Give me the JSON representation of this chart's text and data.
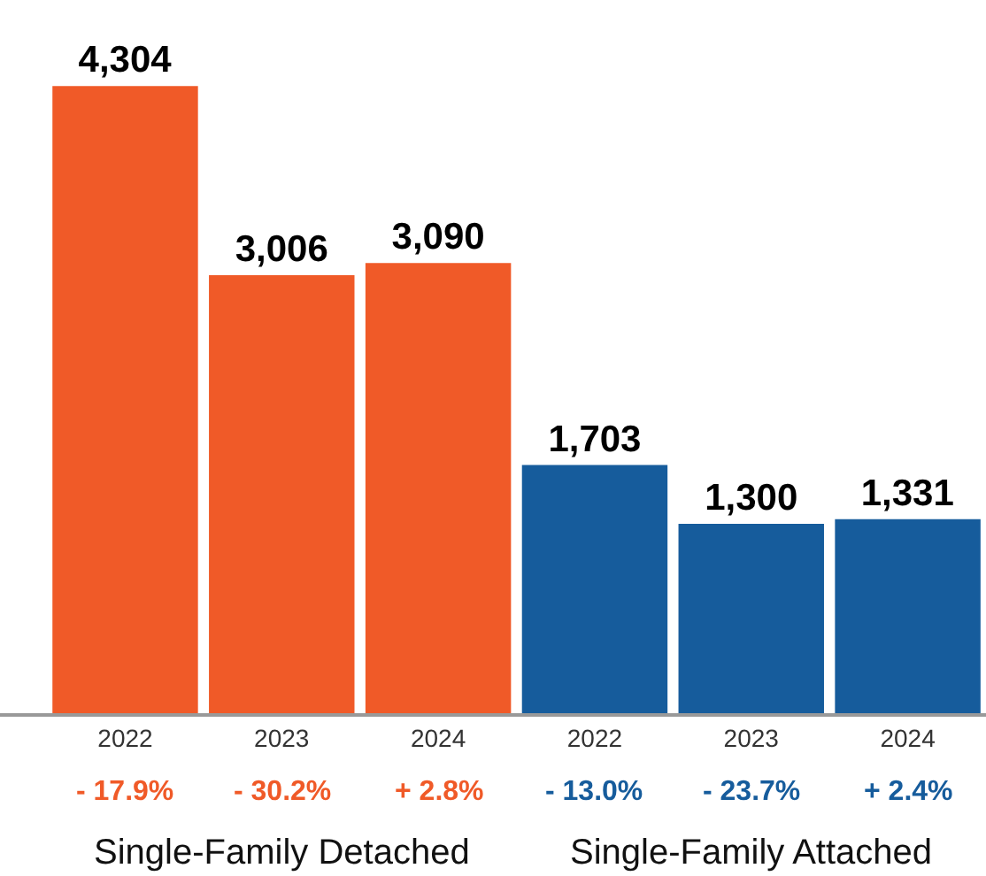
{
  "chart_data": {
    "type": "bar",
    "categories": [
      "2022",
      "2023",
      "2024",
      "2022",
      "2023",
      "2024"
    ],
    "values": [
      4304,
      3006,
      3090,
      1703,
      1300,
      1331
    ],
    "colors": [
      "#f05a28",
      "#f05a28",
      "#f05a28",
      "#165c9c",
      "#165c9c",
      "#165c9c"
    ],
    "value_labels": [
      "4,304",
      "3,006",
      "3,090",
      "1,703",
      "1,300",
      "1,331"
    ],
    "tick_labels": "x",
    "grid": false,
    "legend": false,
    "annotations": [
      "- 17.9%",
      "- 30.2%",
      "+ 2.8%",
      "- 13.0%",
      "- 23.7%",
      "+ 2.4%",
      "Single-Family Detached",
      "Single-Family Attached"
    ]
  }
}
